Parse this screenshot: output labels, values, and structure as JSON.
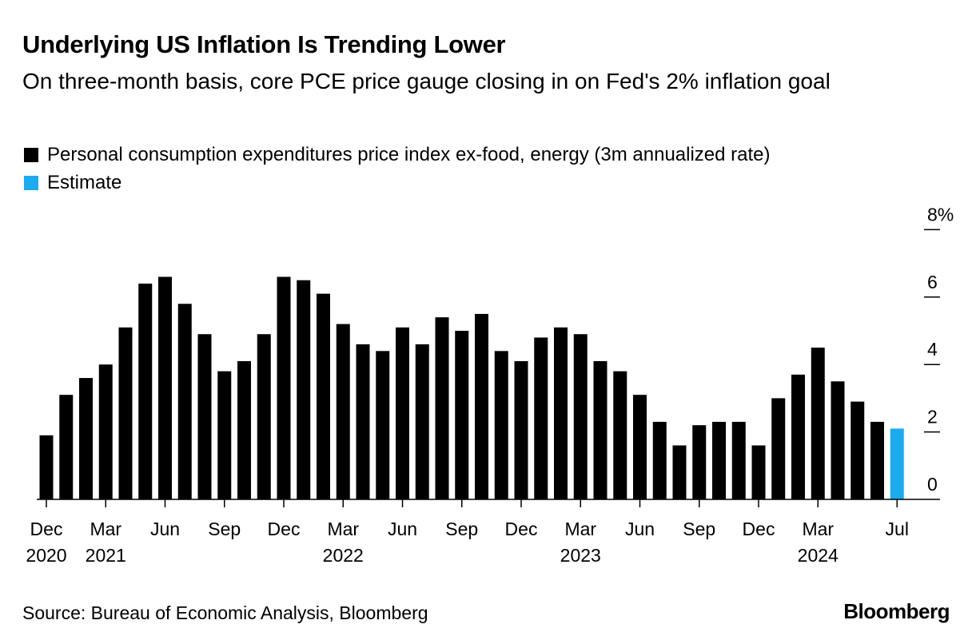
{
  "chart_data": {
    "type": "bar",
    "title": "Underlying US Inflation Is Trending Lower",
    "subtitle": "On three-month basis, core PCE price gauge closing in on Fed's 2% inflation goal",
    "legend": [
      {
        "label": "Personal consumption expenditures price index ex-food, energy (3m annualized rate)",
        "color": "#000000"
      },
      {
        "label": "Estimate",
        "color": "#1aabf0"
      }
    ],
    "legend_position": "top-left",
    "series": [
      {
        "name": "Personal consumption expenditures price index ex-food, energy (3m annualized rate)",
        "values": [
          1.9,
          3.1,
          3.6,
          4.0,
          5.1,
          6.4,
          6.6,
          5.8,
          4.9,
          3.8,
          4.1,
          4.9,
          6.6,
          6.5,
          6.1,
          5.2,
          4.6,
          4.4,
          5.1,
          4.6,
          5.4,
          5.0,
          5.5,
          4.4,
          4.1,
          4.8,
          5.1,
          4.9,
          4.1,
          3.8,
          3.1,
          2.3,
          1.6,
          2.2,
          2.3,
          2.3,
          1.6,
          3.0,
          3.7,
          4.5,
          3.5,
          2.9,
          2.3
        ]
      },
      {
        "name": "Estimate",
        "values": [
          2.1
        ]
      }
    ],
    "x_start": "Dec 2020",
    "x_end": "Jul 2024",
    "tick_labels": [
      {
        "index": 0,
        "month": "Dec",
        "year": "2020"
      },
      {
        "index": 3,
        "month": "Mar",
        "year": "2021"
      },
      {
        "index": 6,
        "month": "Jun",
        "year": ""
      },
      {
        "index": 9,
        "month": "Sep",
        "year": ""
      },
      {
        "index": 12,
        "month": "Dec",
        "year": ""
      },
      {
        "index": 15,
        "month": "Mar",
        "year": "2022"
      },
      {
        "index": 18,
        "month": "Jun",
        "year": ""
      },
      {
        "index": 21,
        "month": "Sep",
        "year": ""
      },
      {
        "index": 24,
        "month": "Dec",
        "year": ""
      },
      {
        "index": 27,
        "month": "Mar",
        "year": "2023"
      },
      {
        "index": 30,
        "month": "Jun",
        "year": ""
      },
      {
        "index": 33,
        "month": "Sep",
        "year": ""
      },
      {
        "index": 36,
        "month": "Dec",
        "year": ""
      },
      {
        "index": 39,
        "month": "Mar",
        "year": "2024"
      },
      {
        "index": 43,
        "month": "Jul",
        "year": ""
      }
    ],
    "y_ticks": [
      {
        "value": 0,
        "label": "0"
      },
      {
        "value": 2,
        "label": "2"
      },
      {
        "value": 4,
        "label": "4"
      },
      {
        "value": 6,
        "label": "6"
      },
      {
        "value": 8,
        "label": "8%"
      }
    ],
    "ylim": [
      0,
      8
    ],
    "xlabel": "",
    "ylabel": "",
    "grid": false
  },
  "footer": {
    "source": "Source: Bureau of Economic Analysis, Bloomberg",
    "brand": "Bloomberg"
  }
}
